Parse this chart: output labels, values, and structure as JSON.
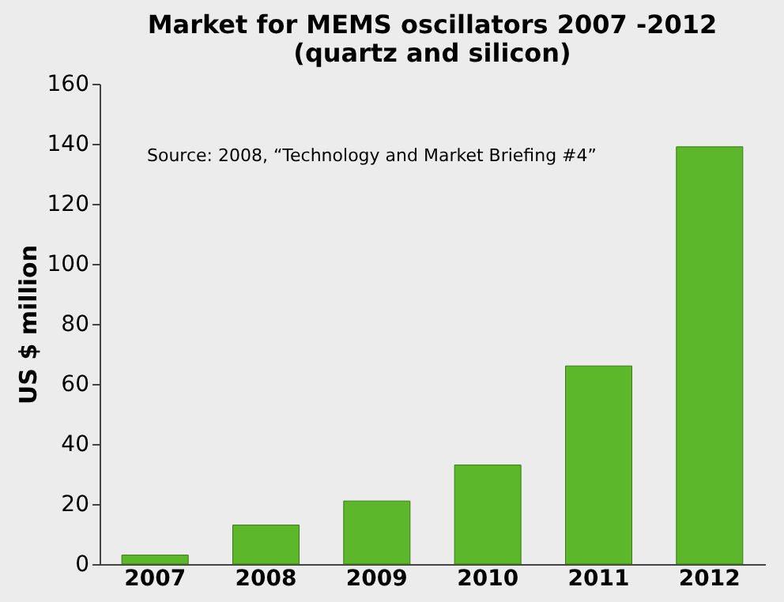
{
  "chart_data": {
    "type": "bar",
    "title": [
      "Market for MEMS oscillators 2007 -2012",
      "(quartz and silicon)"
    ],
    "ylabel": "US $ million",
    "categories": [
      "2007",
      "2008",
      "2009",
      "2010",
      "2011",
      "2012"
    ],
    "values": [
      3,
      13,
      21,
      33,
      66,
      139
    ],
    "color": "#5cb82a",
    "ylim": [
      0,
      160
    ],
    "yticks": [
      0,
      20,
      40,
      60,
      80,
      100,
      120,
      140,
      160
    ],
    "grid": false,
    "annotations": [
      "Source: 2008, “Technology and Market Briefing #4”"
    ]
  }
}
